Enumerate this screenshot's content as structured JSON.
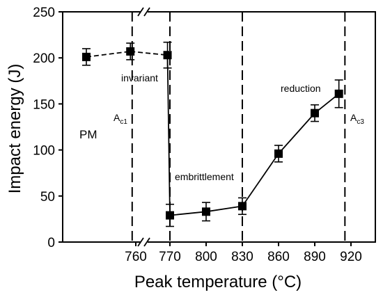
{
  "chart_data": {
    "type": "line",
    "xlabel": "Peak temperature (°C)",
    "ylabel": "Impact energy (J)",
    "ylim": [
      0,
      250
    ],
    "yticks": [
      0,
      50,
      100,
      150,
      200,
      250
    ],
    "xticks": [
      "760",
      "770",
      "800",
      "830",
      "860",
      "890",
      "920"
    ],
    "x_axis_break": "between 760 and 770",
    "grid": false,
    "series": [
      {
        "x": [
          "PM",
          757,
          768,
          770,
          800,
          830,
          860,
          890,
          910
        ],
        "values": [
          201,
          207,
          203,
          29,
          33,
          39,
          96,
          140,
          161
        ],
        "error": [
          9,
          9,
          14,
          12,
          10,
          9,
          9,
          9,
          15
        ]
      }
    ],
    "dashed_line_at_x": [
      758,
      770,
      830,
      915
    ],
    "annotations": {
      "pm": "PM",
      "ac1_main": "A",
      "ac1_sub": "c1",
      "ac3_main": "A",
      "ac3_sub": "c3",
      "invariant": "invariant",
      "embrittlement": "embrittlement",
      "reduction": "reduction"
    }
  }
}
